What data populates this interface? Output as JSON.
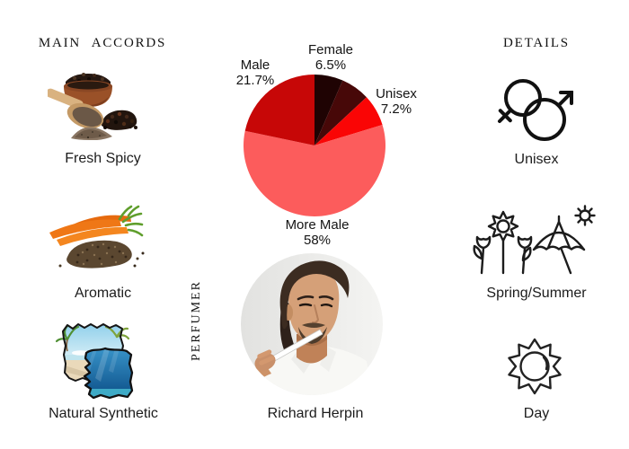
{
  "left_column": {
    "heading": "MAIN ACCORDS",
    "accords": [
      {
        "label": "Fresh Spicy",
        "image": "black-pepper-bowl-photo"
      },
      {
        "label": "Aromatic",
        "image": "carrots-and-seeds-photo"
      },
      {
        "label": "Natural Synthetic",
        "image": "beach-water-collage-photo"
      }
    ]
  },
  "center_column": {
    "perfumer_heading": "PERFUMER",
    "perfumer_name": "Richard Herpin",
    "perfumer_photo": "man-smelling-scent-strip-photo"
  },
  "right_column": {
    "heading": "DETAILS",
    "details": [
      {
        "label": "Unisex",
        "icon": "unisex-gender-icon"
      },
      {
        "label": "Spring/Summer",
        "icon": "spring-summer-icon"
      },
      {
        "label": "Day",
        "icon": "day-sun-icon"
      }
    ]
  },
  "chart_data": {
    "type": "pie",
    "direction": "clockwise",
    "start_angle_deg": 0,
    "legend_position": "labels-around-pie",
    "slices": [
      {
        "name": "Female",
        "pct": 6.5,
        "pct_label": "6.5%",
        "color": "#1f0303",
        "labeled": true
      },
      {
        "name": "",
        "pct": 6.6,
        "pct_label": "",
        "color": "#470808",
        "labeled": false
      },
      {
        "name": "Unisex",
        "pct": 7.2,
        "pct_label": "7.2%",
        "color": "#fa0505",
        "labeled": true
      },
      {
        "name": "More Male",
        "pct": 58,
        "pct_label": "58%",
        "color": "#fc5c5c",
        "labeled": true
      },
      {
        "name": "Male",
        "pct": 21.7,
        "pct_label": "21.7%",
        "color": "#c70707",
        "labeled": true
      }
    ]
  }
}
